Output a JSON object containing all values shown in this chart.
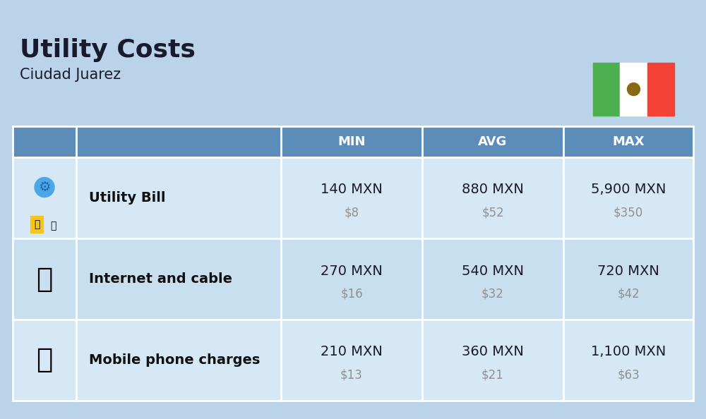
{
  "title": "Utility Costs",
  "subtitle": "Ciudad Juarez",
  "background_color": "#bad3e8",
  "header_color": "#5b8db8",
  "header_text_color": "#ffffff",
  "row_color": "#d6e8f5",
  "row_alt_color": "#c8dff0",
  "text_color": "#1a1a2e",
  "secondary_text_color": "#909090",
  "label_color": "#111111",
  "columns": [
    "MIN",
    "AVG",
    "MAX"
  ],
  "rows": [
    {
      "label": "Utility Bill",
      "min_mxn": "140 MXN",
      "min_usd": "$8",
      "avg_mxn": "880 MXN",
      "avg_usd": "$52",
      "max_mxn": "5,900 MXN",
      "max_usd": "$350"
    },
    {
      "label": "Internet and cable",
      "min_mxn": "270 MXN",
      "min_usd": "$16",
      "avg_mxn": "540 MXN",
      "avg_usd": "$32",
      "max_mxn": "720 MXN",
      "max_usd": "$42"
    },
    {
      "label": "Mobile phone charges",
      "min_mxn": "210 MXN",
      "min_usd": "$13",
      "avg_mxn": "360 MXN",
      "avg_usd": "$21",
      "max_mxn": "1,100 MXN",
      "max_usd": "$63"
    }
  ],
  "flag_green": "#4caf50",
  "flag_white": "#ffffff",
  "flag_red": "#f44336",
  "title_fontsize": 26,
  "subtitle_fontsize": 15,
  "header_fontsize": 13,
  "cell_fontsize": 14,
  "label_fontsize": 14
}
